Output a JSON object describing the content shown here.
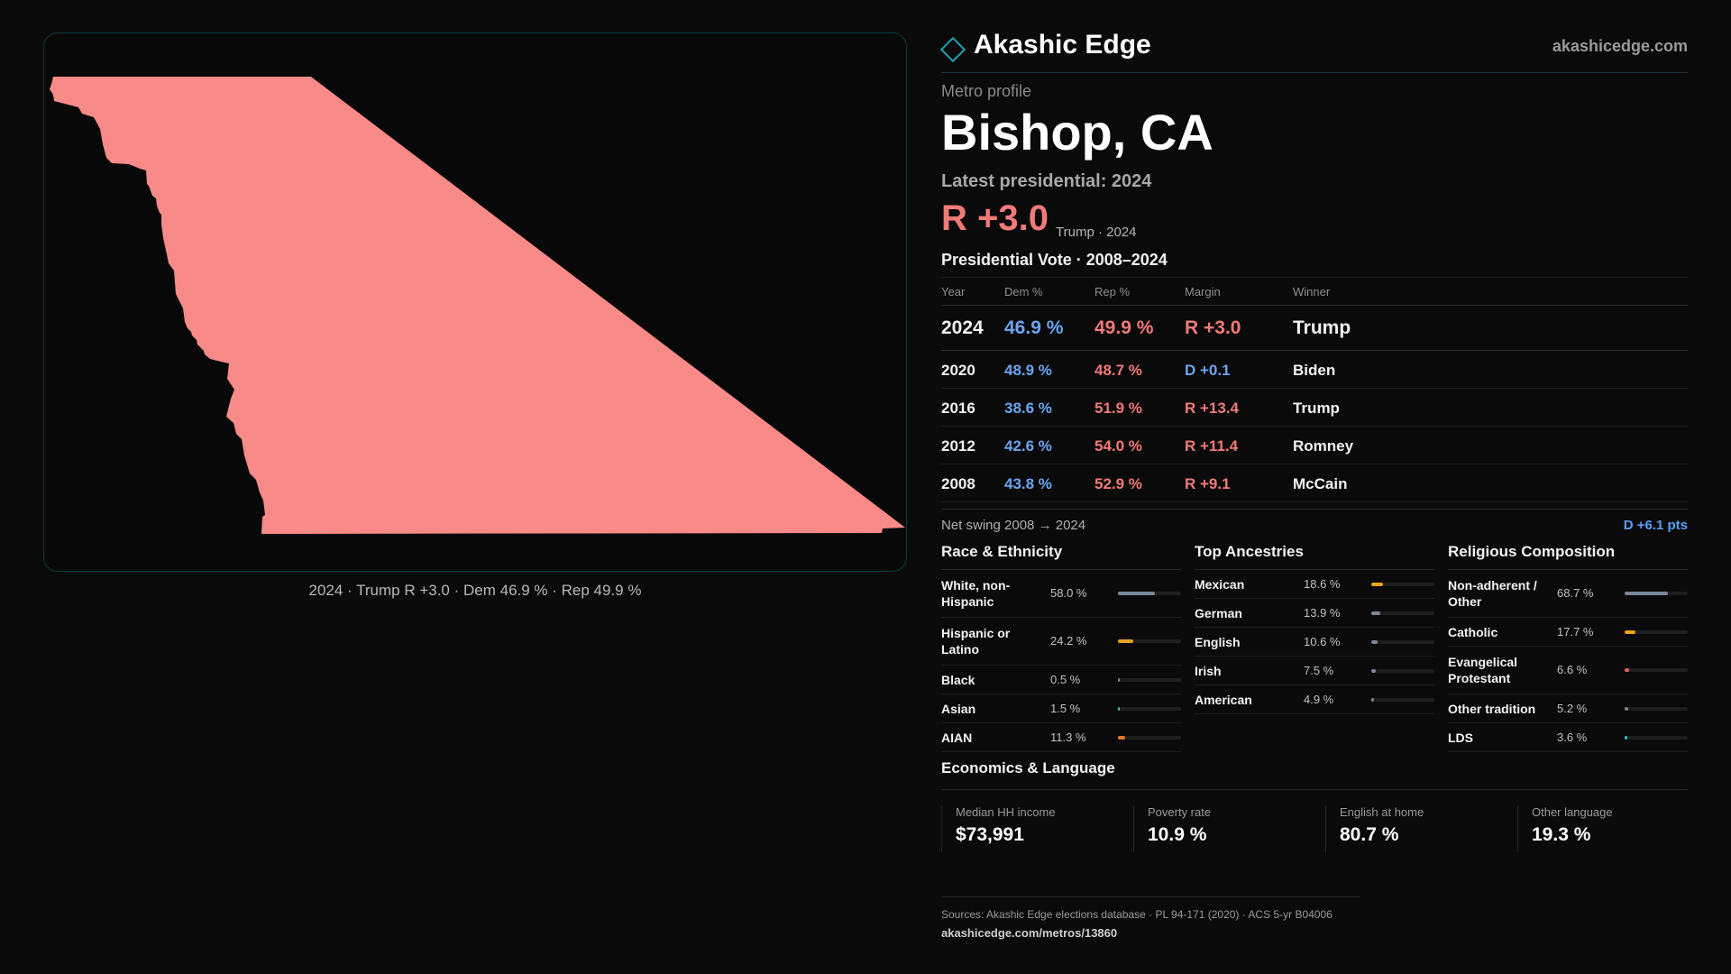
{
  "map": {
    "fill_color": "#f88a88",
    "caption": "2024 · Trump R +3.0 · Dem 46.9 % · Rep 49.9 %"
  },
  "header": {
    "brand": "Akashic Edge",
    "site": "akashicedge.com"
  },
  "metro": {
    "label": "Metro profile",
    "title": "Bishop, CA",
    "latest_label": "Latest presidential: 2024",
    "margin": "R +3.0",
    "winner_note": "Trump · 2024"
  },
  "vote_table": {
    "title": "Presidential Vote · 2008–2024",
    "headers": {
      "year": "Year",
      "dem": "Dem %",
      "rep": "Rep %",
      "margin": "Margin",
      "winner": "Winner"
    },
    "rows": [
      {
        "year": "2024",
        "dem": "46.9 %",
        "rep": "49.9 %",
        "margin": "R +3.0",
        "winner": "Trump"
      },
      {
        "year": "2020",
        "dem": "48.9 %",
        "rep": "48.7 %",
        "margin": "D +0.1",
        "winner": "Biden"
      },
      {
        "year": "2016",
        "dem": "38.6 %",
        "rep": "51.9 %",
        "margin": "R +13.4",
        "winner": "Trump"
      },
      {
        "year": "2012",
        "dem": "42.6 %",
        "rep": "54.0 %",
        "margin": "R +11.4",
        "winner": "Romney"
      },
      {
        "year": "2008",
        "dem": "43.8 %",
        "rep": "52.9 %",
        "margin": "R +9.1",
        "winner": "McCain"
      }
    ]
  },
  "swing": {
    "label": "Net swing 2008 → 2024",
    "value": "D +6.1 pts"
  },
  "race": {
    "title": "Race & Ethnicity",
    "items": [
      {
        "label": "White, non-Hispanic",
        "value": "58.0 %",
        "pct": 58.0,
        "color": "#7d8799"
      },
      {
        "label": "Hispanic or Latino",
        "value": "24.2 %",
        "pct": 24.2,
        "color": "#e8a317"
      },
      {
        "label": "Black",
        "value": "0.5 %",
        "pct": 0.5,
        "color": "#7d8799"
      },
      {
        "label": "Asian",
        "value": "1.5 %",
        "pct": 1.5,
        "color": "#3fb8a8"
      },
      {
        "label": "AIAN",
        "value": "11.3 %",
        "pct": 11.3,
        "color": "#e07a2a"
      }
    ]
  },
  "ancestry": {
    "title": "Top Ancestries",
    "items": [
      {
        "label": "Mexican",
        "value": "18.6 %",
        "pct": 18.6,
        "color": "#e8a317"
      },
      {
        "label": "German",
        "value": "13.9 %",
        "pct": 13.9,
        "color": "#7d8799"
      },
      {
        "label": "English",
        "value": "10.6 %",
        "pct": 10.6,
        "color": "#7d8799"
      },
      {
        "label": "Irish",
        "value": "7.5 %",
        "pct": 7.5,
        "color": "#7d8799"
      },
      {
        "label": "American",
        "value": "4.9 %",
        "pct": 4.9,
        "color": "#7d8799"
      }
    ]
  },
  "religion": {
    "title": "Religious Composition",
    "items": [
      {
        "label": "Non-adherent / Other",
        "value": "68.7 %",
        "pct": 68.7,
        "color": "#7d8799"
      },
      {
        "label": "Catholic",
        "value": "17.7 %",
        "pct": 17.7,
        "color": "#e8a317"
      },
      {
        "label": "Evangelical Protestant",
        "value": "6.6 %",
        "pct": 6.6,
        "color": "#e0605a"
      },
      {
        "label": "Other tradition",
        "value": "5.2 %",
        "pct": 5.2,
        "color": "#7d8799"
      },
      {
        "label": "LDS",
        "value": "3.6 %",
        "pct": 3.6,
        "color": "#3fb8c8"
      }
    ]
  },
  "economics": {
    "title": "Economics & Language",
    "items": [
      {
        "label": "Median HH income",
        "value": "$73,991"
      },
      {
        "label": "Poverty rate",
        "value": "10.9 %"
      },
      {
        "label": "English at home",
        "value": "80.7 %"
      },
      {
        "label": "Other language",
        "value": "19.3 %"
      }
    ]
  },
  "footer": {
    "sources": "Sources: Akashic Edge elections database · PL 94-171 (2020) · ACS 5-yr B04006",
    "link": "akashicedge.com/metros/13860"
  }
}
